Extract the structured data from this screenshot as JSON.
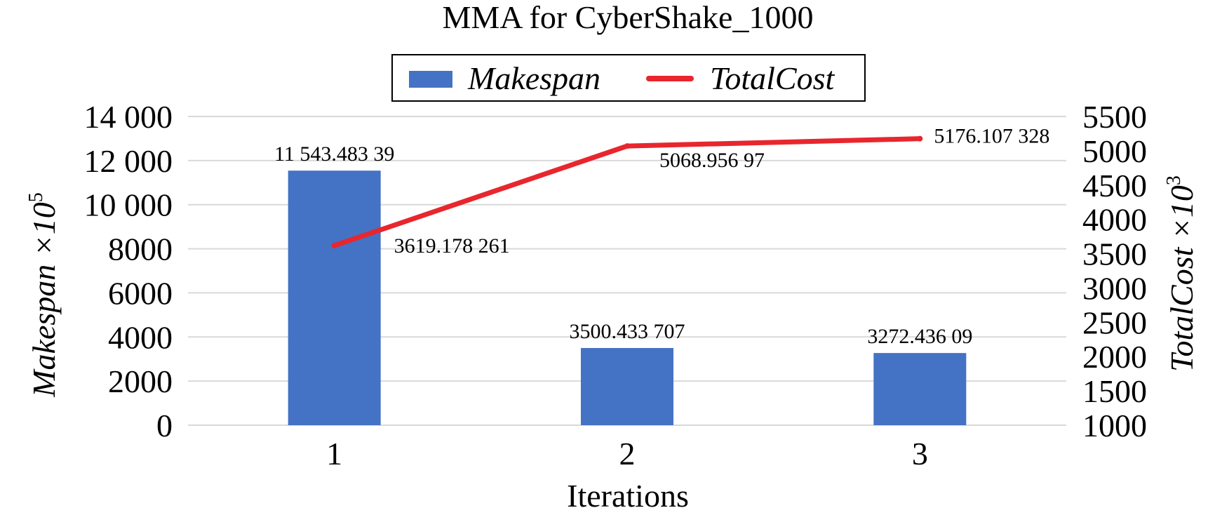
{
  "chart_data": {
    "type": "bar+line",
    "title": "MMA for CyberShake_1000",
    "xlabel": "Iterations",
    "categories": [
      "1",
      "2",
      "3"
    ],
    "y_left": {
      "label_main": "Makespan ×10",
      "label_exp": "5",
      "ylim": [
        0,
        14000
      ],
      "ticks": [
        0,
        2000,
        4000,
        6000,
        8000,
        10000,
        12000,
        14000
      ],
      "tick_labels": [
        "0",
        "2000",
        "4000",
        "6000",
        "8000",
        "10 000",
        "12 000",
        "14 000"
      ]
    },
    "y_right": {
      "label_main": "TotalCost ×10",
      "label_exp": "3",
      "ylim": [
        1000,
        5500
      ],
      "ticks": [
        1000,
        1500,
        2000,
        2500,
        3000,
        3500,
        4000,
        4500,
        5000,
        5500
      ],
      "tick_labels": [
        "1000",
        "1500",
        "2000",
        "2500",
        "3000",
        "3500",
        "4000",
        "4500",
        "5000",
        "5500"
      ]
    },
    "series": [
      {
        "name": "Makespan",
        "type": "bar",
        "axis": "left",
        "color": "#4472C4",
        "values": [
          11543.48339,
          3500.433707,
          3272.43609
        ],
        "data_labels": [
          "11 543.483 39",
          "3500.433 707",
          "3272.436 09"
        ]
      },
      {
        "name": "TotalCost",
        "type": "line",
        "axis": "right",
        "color": "#E8262E",
        "values": [
          3619.178261,
          5068.95697,
          5176.107328
        ],
        "data_labels": [
          "3619.178 261",
          "5068.956 97",
          "5176.107 328"
        ]
      }
    ],
    "grid": true,
    "legend_position": "top"
  }
}
